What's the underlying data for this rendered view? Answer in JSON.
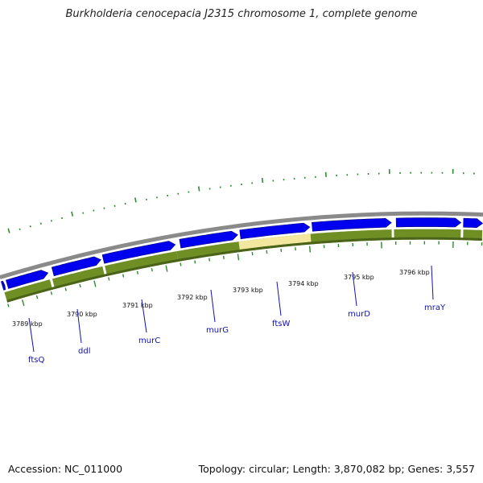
{
  "title": "Burkholderia cenocepacia J2315 chromosome 1, complete genome",
  "footer": {
    "accession": "Accession: NC_011000",
    "summary": "Topology: circular; Length: 3,870,082 bp; Genes: 3,557"
  },
  "colors": {
    "gene_arrow": "#0000ee",
    "cds_band": "#6f8f25",
    "selected_band": "#f3e7a0",
    "gene_label": "#1010b0",
    "outer_ring": "#8a8a8a",
    "ticks": "#2e8b2e"
  },
  "scale_labels": [
    "3789 kbp",
    "3790 kbp",
    "3791 kbp",
    "3792 kbp",
    "3793 kbp",
    "3794 kbp",
    "3795 kbp",
    "3796 kbp"
  ],
  "genes": [
    {
      "name": "ftsQ",
      "icon": "gene-arrow"
    },
    {
      "name": "ddl",
      "icon": "gene-arrow"
    },
    {
      "name": "murC",
      "icon": "gene-arrow"
    },
    {
      "name": "murG",
      "icon": "gene-arrow"
    },
    {
      "name": "ftsW",
      "icon": "gene-arrow",
      "highlighted": true
    },
    {
      "name": "murD",
      "icon": "gene-arrow"
    },
    {
      "name": "mraY",
      "icon": "gene-arrow"
    }
  ]
}
